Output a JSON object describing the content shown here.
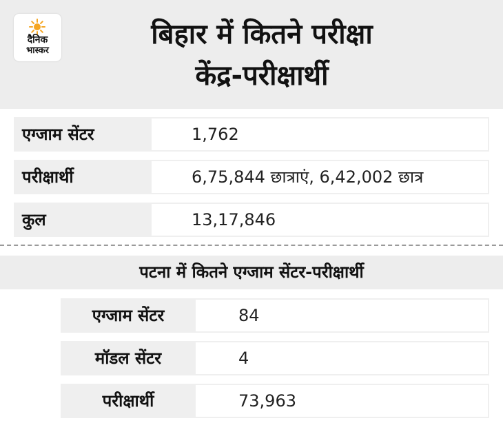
{
  "logo": {
    "line1": "दैनिक",
    "line2": "भास्कर",
    "sun_color": "#f5a623"
  },
  "title": {
    "line1": "बिहार में कितने परीक्षा",
    "line2": "केंद्र-परीक्षार्थी"
  },
  "bihar_table": [
    {
      "label": "एग्जाम सेंटर",
      "value": "1,762"
    },
    {
      "label": "परीक्षार्थी",
      "value": "6,75,844 छात्राएं,  6,42,002 छात्र"
    },
    {
      "label": "कुल",
      "value": "13,17,846"
    }
  ],
  "patna_heading": "पटना में कितने एग्जाम सेंटर-परीक्षार्थी",
  "patna_table": [
    {
      "label": "एग्जाम सेंटर",
      "value": "84"
    },
    {
      "label": "मॉडल सेंटर",
      "value": "4"
    },
    {
      "label": "परीक्षार्थी",
      "value": "73,963"
    }
  ]
}
